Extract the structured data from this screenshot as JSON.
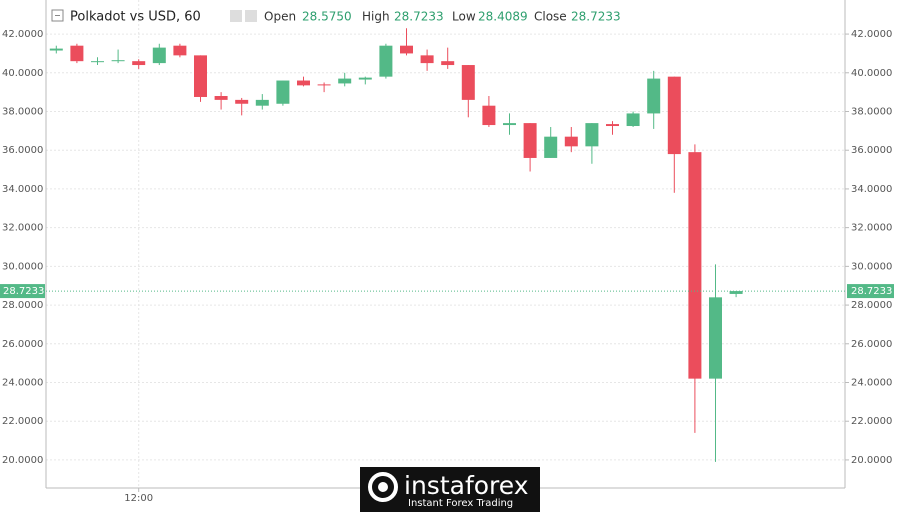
{
  "chart_data": {
    "type": "candlestick",
    "title": "Polkadot vs USD, 60",
    "ohlc_labels": {
      "open": "Open",
      "high": "High",
      "low": "Low",
      "close": "Close"
    },
    "ohlc_values": {
      "open": {
        "value": 28.575,
        "label": "28.5750"
      },
      "high": 28.7233,
      "low": 28.4089,
      "close": 28.7233
    },
    "last_price": 28.7233,
    "categories": [
      null,
      null,
      null,
      null,
      "12:00",
      null,
      null,
      null,
      null,
      null,
      null,
      null,
      null,
      null,
      null,
      null,
      null,
      null,
      null,
      null,
      null,
      null,
      null,
      null,
      null,
      null,
      null,
      null,
      null,
      null,
      null,
      null,
      null,
      null
    ],
    "series": [
      {
        "name": "Open",
        "values": [
          41.15,
          41.4,
          40.55,
          40.6,
          40.6,
          40.5,
          41.4,
          40.9,
          38.8,
          38.6,
          38.3,
          38.4,
          39.6,
          39.4,
          39.45,
          39.65,
          39.8,
          41.4,
          40.9,
          40.6,
          40.4,
          38.3,
          37.3,
          37.4,
          35.6,
          36.7,
          36.2,
          37.35,
          37.25,
          37.9,
          39.8,
          35.9,
          24.2,
          28.575
        ]
      },
      {
        "name": "High",
        "values": [
          41.4,
          41.5,
          40.8,
          41.2,
          40.7,
          41.5,
          41.5,
          40.9,
          39.0,
          38.7,
          38.9,
          39.6,
          39.8,
          39.5,
          40.0,
          39.8,
          41.5,
          42.3,
          41.2,
          41.3,
          40.4,
          38.8,
          37.9,
          37.4,
          37.2,
          37.2,
          37.4,
          37.5,
          38.0,
          40.1,
          39.8,
          36.3,
          30.1,
          28.7233
        ]
      },
      {
        "name": "Low",
        "values": [
          41.0,
          40.5,
          40.4,
          40.5,
          40.2,
          40.4,
          40.8,
          38.5,
          38.1,
          37.8,
          38.1,
          38.3,
          39.3,
          39.0,
          39.3,
          39.4,
          39.7,
          40.9,
          40.1,
          40.2,
          37.7,
          37.2,
          36.8,
          34.9,
          35.6,
          35.9,
          35.3,
          36.8,
          37.2,
          37.1,
          33.8,
          21.4,
          19.9,
          28.4089
        ]
      },
      {
        "name": "Close",
        "values": [
          41.25,
          40.6,
          40.6,
          40.65,
          40.4,
          41.3,
          40.9,
          38.75,
          38.6,
          38.4,
          38.6,
          39.6,
          39.35,
          39.35,
          39.7,
          39.75,
          41.4,
          41.0,
          40.5,
          40.4,
          38.6,
          37.3,
          37.4,
          35.6,
          36.7,
          36.2,
          37.4,
          37.25,
          37.9,
          39.7,
          35.8,
          24.2,
          28.4,
          28.7233
        ]
      }
    ],
    "up_color": "#53b987",
    "down_color": "#eb4d5c",
    "ylim": [
      18.55,
      43.76
    ],
    "yticks": [
      {
        "value": 20,
        "label": "20.0000"
      },
      {
        "value": 22,
        "label": "22.0000"
      },
      {
        "value": 24,
        "label": "24.0000"
      },
      {
        "value": 26,
        "label": "26.0000"
      },
      {
        "value": 28,
        "label": "28.0000"
      },
      {
        "value": 30,
        "label": "30.0000"
      },
      {
        "value": 32,
        "label": "32.0000"
      },
      {
        "value": 34,
        "label": "34.0000"
      },
      {
        "value": 36,
        "label": "36.0000"
      },
      {
        "value": 38,
        "label": "38.0000"
      },
      {
        "value": 40,
        "label": "40.0000"
      },
      {
        "value": 42,
        "label": "42.0000"
      }
    ],
    "grid": true,
    "watermark": {
      "brand": "instaforex",
      "tagline": "Instant Forex Trading"
    }
  }
}
